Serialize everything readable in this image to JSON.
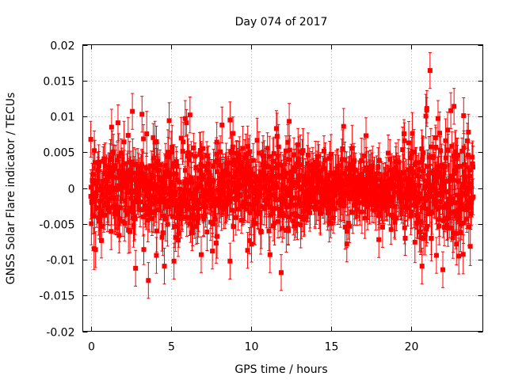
{
  "chart_data": {
    "type": "scatter",
    "title": "Day 074 of 2017",
    "xlabel": "GPS time / hours",
    "ylabel": "GNSS Solar Flare indicator / TECUs",
    "xlim": [
      -0.5,
      24.5
    ],
    "ylim": [
      -0.02,
      0.02
    ],
    "x_ticks": [
      0,
      5,
      10,
      15,
      20
    ],
    "x_tick_labels": [
      "0",
      "5",
      "10",
      "15",
      "20"
    ],
    "y_ticks": [
      -0.02,
      -0.015,
      -0.01,
      -0.005,
      0,
      0.005,
      0.01,
      0.015,
      0.02
    ],
    "y_tick_labels": [
      "-0.02",
      "-0.015",
      "-0.01",
      "-0.005",
      "0",
      "0.005",
      "0.01",
      "0.015",
      "0.02"
    ],
    "grid": true,
    "series_color": "#ff0000",
    "series": [
      {
        "name": "indicator",
        "marker": "square",
        "error_bars": true,
        "x_range": [
          0,
          23.9
        ],
        "sample_count": 1300,
        "typical_errorbar_halfwidth": 0.0025,
        "highlighted_points": [
          {
            "x": 0.0,
            "y": 0.0068
          },
          {
            "x": 0.3,
            "y": -0.0086
          },
          {
            "x": 1.3,
            "y": 0.0085
          },
          {
            "x": 1.7,
            "y": 0.0091
          },
          {
            "x": 2.6,
            "y": 0.0107
          },
          {
            "x": 2.8,
            "y": -0.0112
          },
          {
            "x": 3.2,
            "y": 0.0103
          },
          {
            "x": 3.6,
            "y": -0.0129
          },
          {
            "x": 4.1,
            "y": -0.0094
          },
          {
            "x": 4.6,
            "y": -0.0109
          },
          {
            "x": 4.9,
            "y": 0.0094
          },
          {
            "x": 5.2,
            "y": -0.0102
          },
          {
            "x": 5.9,
            "y": 0.0097
          },
          {
            "x": 6.2,
            "y": 0.0102
          },
          {
            "x": 6.9,
            "y": -0.0093
          },
          {
            "x": 7.6,
            "y": -0.0088
          },
          {
            "x": 8.2,
            "y": 0.0088
          },
          {
            "x": 8.7,
            "y": -0.0102
          },
          {
            "x": 9.8,
            "y": -0.0087
          },
          {
            "x": 11.2,
            "y": -0.0093
          },
          {
            "x": 11.6,
            "y": 0.0083
          },
          {
            "x": 11.9,
            "y": -0.0118
          },
          {
            "x": 12.4,
            "y": 0.0093
          },
          {
            "x": 15.8,
            "y": 0.0086
          },
          {
            "x": 16.0,
            "y": -0.0078
          },
          {
            "x": 17.2,
            "y": 0.0073
          },
          {
            "x": 18.0,
            "y": -0.0072
          },
          {
            "x": 19.6,
            "y": 0.0066
          },
          {
            "x": 20.7,
            "y": -0.0109
          },
          {
            "x": 21.0,
            "y": 0.0111
          },
          {
            "x": 21.2,
            "y": 0.0164
          },
          {
            "x": 21.6,
            "y": -0.0094
          },
          {
            "x": 21.7,
            "y": 0.0097
          },
          {
            "x": 22.0,
            "y": -0.0114
          },
          {
            "x": 22.3,
            "y": 0.0081
          },
          {
            "x": 22.5,
            "y": 0.0108
          },
          {
            "x": 22.7,
            "y": 0.0114
          },
          {
            "x": 23.0,
            "y": -0.0095
          },
          {
            "x": 23.3,
            "y": 0.0101
          },
          {
            "x": 23.6,
            "y": 0.0078
          }
        ]
      }
    ]
  }
}
